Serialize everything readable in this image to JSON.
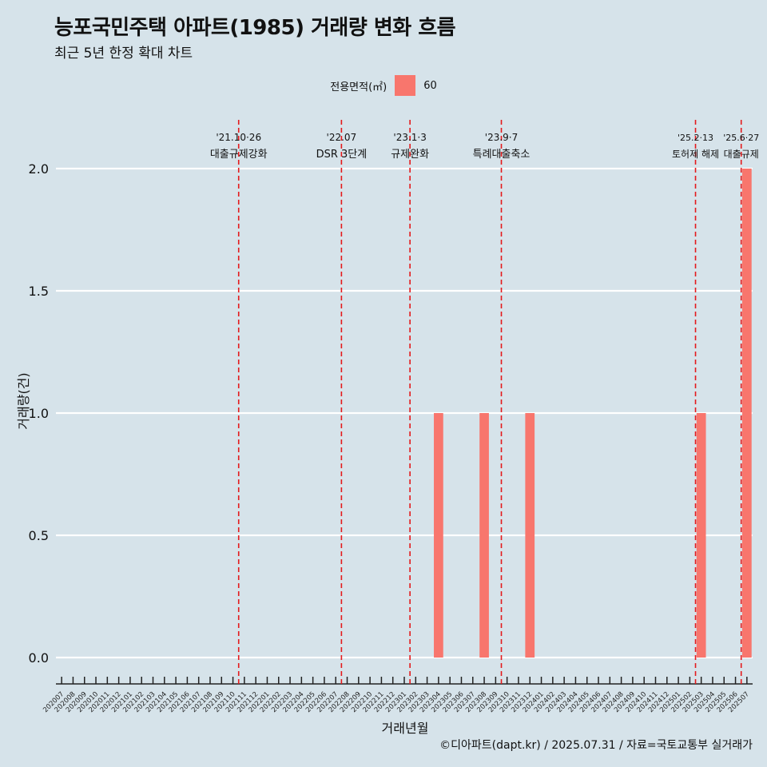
{
  "title": "능포국민주택 아파트(1985) 거래량 변화 흐름",
  "subtitle": "최근 5년 한정 확대 차트",
  "caption": "©디아파트(dapt.kr) / 2025.07.31 / 자료=국토교통부 실거래가",
  "colors": {
    "background": "#d6e3ea",
    "bar": "#f8766d",
    "event_line": "#e41a1c",
    "grid": "#ffffff",
    "text": "#111111"
  },
  "chart_data": {
    "type": "bar",
    "xlabel": "거래년월",
    "ylabel": "거래량(건)",
    "ylim": [
      0,
      2
    ],
    "yticks": [
      "0.0",
      "0.5",
      "1.0",
      "1.5",
      "2.0"
    ],
    "grid": true,
    "legend": {
      "title": "전용면적(㎡)",
      "position": "top",
      "entries": [
        "60"
      ]
    },
    "categories": [
      "202007",
      "202008",
      "202009",
      "202010",
      "202011",
      "202012",
      "202101",
      "202102",
      "202103",
      "202104",
      "202105",
      "202106",
      "202107",
      "202108",
      "202109",
      "202110",
      "202111",
      "202112",
      "202201",
      "202202",
      "202203",
      "202204",
      "202205",
      "202206",
      "202207",
      "202208",
      "202209",
      "202210",
      "202211",
      "202212",
      "202301",
      "202302",
      "202303",
      "202304",
      "202305",
      "202306",
      "202307",
      "202308",
      "202309",
      "202310",
      "202311",
      "202312",
      "202401",
      "202402",
      "202403",
      "202404",
      "202405",
      "202406",
      "202407",
      "202408",
      "202409",
      "202410",
      "202411",
      "202412",
      "202501",
      "202502",
      "202503",
      "202504",
      "202505",
      "202506",
      "202507"
    ],
    "series": [
      {
        "name": "60",
        "values": [
          0,
          0,
          0,
          0,
          0,
          0,
          0,
          0,
          0,
          0,
          0,
          0,
          0,
          0,
          0,
          0,
          0,
          0,
          0,
          0,
          0,
          0,
          0,
          0,
          0,
          0,
          0,
          0,
          0,
          0,
          0,
          0,
          0,
          1,
          0,
          0,
          0,
          1,
          0,
          0,
          0,
          1,
          0,
          0,
          0,
          0,
          0,
          0,
          0,
          0,
          0,
          0,
          0,
          0,
          0,
          0,
          1,
          0,
          0,
          0,
          2
        ]
      }
    ],
    "events": [
      {
        "x": "202110",
        "date": "'21.10·26",
        "label": "대출규제강화"
      },
      {
        "x": "202207",
        "date": "'22.07",
        "label": "DSR 3단계"
      },
      {
        "x": "202301",
        "date": "'23.1·3",
        "label": "규제완화"
      },
      {
        "x": "202309",
        "date": "'23.9·7",
        "label": "특례대출축소"
      },
      {
        "x": "202502",
        "date": "'25.2·13",
        "label": "토허제 해제"
      },
      {
        "x": "202506",
        "date": "'25.6·27",
        "label": "대출규제"
      }
    ]
  }
}
